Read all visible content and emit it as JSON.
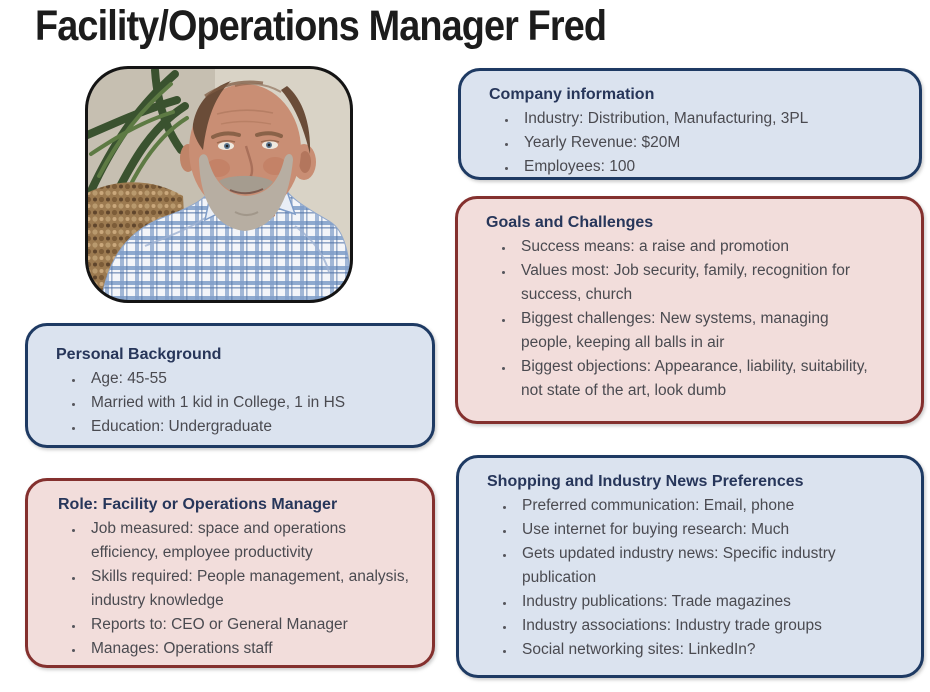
{
  "title": "Facility/Operations Manager Fred",
  "colors": {
    "blue_box_fill": "#dbe3ef",
    "blue_box_border": "#1e3a63",
    "pink_box_fill": "#f2dddb",
    "pink_box_border": "#84302e",
    "heading_text": "#27365a",
    "body_text": "#4a4a50",
    "title_text": "#1c1c1c"
  },
  "boxes": {
    "company": {
      "title": "Company information",
      "bullets": [
        "Industry: Distribution, Manufacturing, 3PL",
        "Yearly Revenue: $20M",
        "Employees: 100"
      ]
    },
    "goals": {
      "title": "Goals and Challenges",
      "bullets": [
        "Success means: a raise and promotion",
        "Values most: Job security, family, recognition for success, church",
        "Biggest challenges: New systems, managing people, keeping all balls in air",
        "Biggest objections: Appearance, liability, suitability, not state of the art, look dumb"
      ]
    },
    "personal": {
      "title": "Personal Background",
      "bullets": [
        "Age: 45-55",
        "Married with 1 kid in College, 1 in HS",
        "Education: Undergraduate"
      ]
    },
    "role": {
      "title": "Role: Facility or Operations Manager",
      "bullets": [
        "Job measured: space and operations efficiency, employee productivity",
        "Skills required: People management, analysis, industry knowledge",
        "Reports to: CEO or General Manager",
        "Manages: Operations staff"
      ]
    },
    "shopping": {
      "title": "Shopping and Industry News Preferences",
      "bullets": [
        "Preferred communication: Email, phone",
        "Use internet for buying research: Much",
        "Gets updated industry news: Specific industry publication",
        "Industry publications: Trade magazines",
        "Industry associations: Industry trade groups",
        "Social networking sites: LinkedIn?"
      ]
    }
  }
}
